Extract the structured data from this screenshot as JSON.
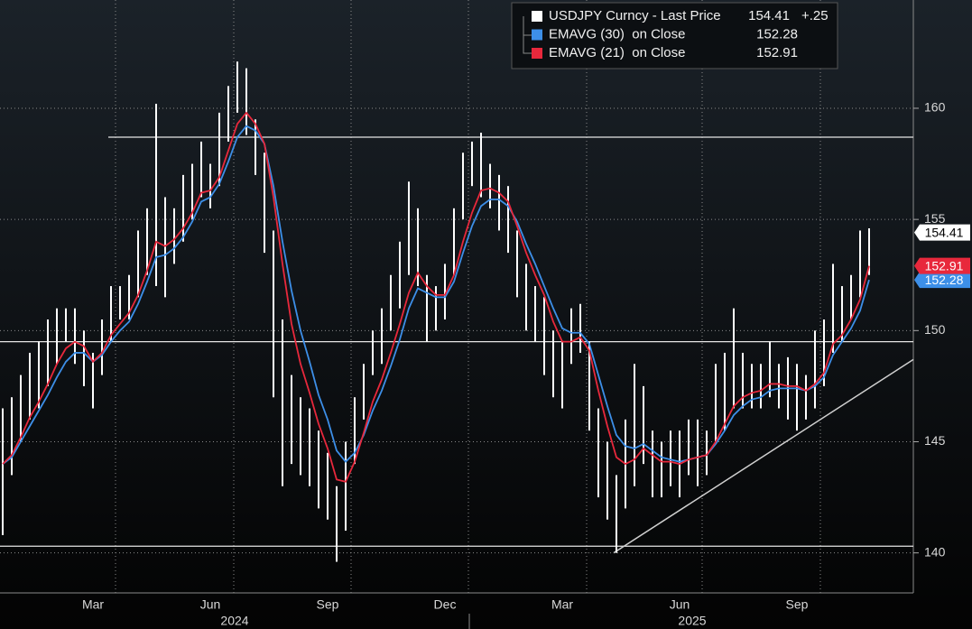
{
  "chart_data": {
    "type": "ohlc",
    "years": [
      "2024",
      "2025"
    ],
    "categories": [
      null,
      null,
      null,
      null,
      null,
      null,
      null,
      null,
      null,
      null,
      "Mar",
      null,
      null,
      null,
      null,
      null,
      null,
      null,
      null,
      null,
      null,
      null,
      null,
      "Jun",
      null,
      null,
      null,
      null,
      null,
      null,
      null,
      null,
      null,
      null,
      null,
      null,
      "Sep",
      null,
      null,
      null,
      null,
      null,
      null,
      null,
      null,
      null,
      null,
      null,
      null,
      "Dec",
      null,
      null,
      null,
      null,
      null,
      null,
      null,
      null,
      null,
      null,
      null,
      null,
      "Mar",
      null,
      null,
      null,
      null,
      null,
      null,
      null,
      null,
      null,
      null,
      null,
      null,
      "Jun",
      null,
      null,
      null,
      null,
      null,
      null,
      null,
      null,
      null,
      null,
      null,
      null,
      "Sep",
      null,
      null,
      null,
      null,
      null,
      null,
      null,
      null
    ],
    "series": [
      {
        "name": "USDJPY Curncy - Last Price",
        "color": "#ffffff",
        "last": 154.41,
        "change": {
          "value": 0.25,
          "label": "+.25"
        },
        "high": [
          146.5,
          147,
          148,
          149,
          149.5,
          150.5,
          151,
          151,
          151,
          150,
          149,
          150.5,
          152,
          152,
          152.5,
          154.5,
          155.5,
          160.2,
          156,
          155.5,
          157,
          157.5,
          158.5,
          157.5,
          159.8,
          161,
          162.1,
          161.8,
          159.5,
          158,
          154.5,
          150.5,
          148,
          147,
          146.5,
          145.5,
          144.5,
          143,
          145,
          147,
          148.5,
          150,
          151,
          152.5,
          154,
          156.7,
          155.5,
          152.5,
          152,
          153,
          155.5,
          158,
          158.5,
          158.9,
          157.5,
          157,
          156.5,
          154.5,
          153,
          152,
          151.5,
          150,
          149.5,
          151,
          151.2,
          149.5,
          146.5,
          145,
          143.5,
          146,
          148.5,
          147.5,
          145.5,
          145,
          145.5,
          145.5,
          146,
          146,
          145.5,
          148.5,
          149,
          151,
          149,
          148.5,
          148.5,
          149.5,
          148.5,
          148.8,
          148.5,
          148,
          150,
          150.5,
          153,
          152,
          152.5,
          154.5,
          154.6
        ],
        "low": [
          140.8,
          143.5,
          145,
          146,
          146.5,
          147.5,
          148.5,
          149.5,
          148.5,
          147.5,
          146.5,
          148,
          149.5,
          150.5,
          150.5,
          151.5,
          152.5,
          152,
          151.5,
          153,
          154,
          155,
          156,
          155.5,
          156.5,
          158.5,
          159.8,
          158.8,
          157,
          153.5,
          147,
          143,
          144,
          143.5,
          143,
          142,
          141.5,
          139.6,
          141,
          144,
          146,
          148,
          148.5,
          150,
          151,
          152.5,
          152,
          149.5,
          150,
          150.5,
          152.5,
          155,
          156.5,
          156,
          155.5,
          154.5,
          153.5,
          151.5,
          150,
          149.5,
          148,
          147,
          146.5,
          148.5,
          149,
          145.5,
          142.5,
          141.5,
          140,
          142,
          143,
          144,
          142.5,
          142.5,
          143,
          142.5,
          143.5,
          143,
          143.5,
          145,
          145.5,
          146.5,
          146.5,
          146.5,
          146.5,
          147,
          146.5,
          146,
          145.5,
          146,
          146.5,
          147.5,
          149,
          149.5,
          150.5,
          151.5,
          152.5
        ]
      },
      {
        "name": "EMAVG (30)  on Close",
        "color": "#3d8fe8",
        "last": 152.28,
        "values": [
          144,
          144.3,
          145,
          145.7,
          146.4,
          147.1,
          147.9,
          148.6,
          149,
          149,
          148.6,
          148.9,
          149.5,
          150,
          150.4,
          151.2,
          152.2,
          153.3,
          153.4,
          153.7,
          154.2,
          154.9,
          155.8,
          156,
          156.6,
          157.6,
          158.7,
          159.2,
          159,
          158.4,
          156.5,
          154,
          151.8,
          150,
          148.6,
          147.1,
          146,
          144.6,
          144.1,
          144.5,
          145.3,
          146.4,
          147.3,
          148.4,
          149.6,
          151,
          151.9,
          151.7,
          151.5,
          151.5,
          152.2,
          153.5,
          154.7,
          155.6,
          155.9,
          155.9,
          155.6,
          154.9,
          153.9,
          153,
          152,
          151,
          150.1,
          149.9,
          149.9,
          149.4,
          148,
          146.6,
          145.3,
          144.8,
          144.7,
          144.9,
          144.6,
          144.3,
          144.2,
          144.1,
          144.2,
          144.3,
          144.4,
          144.9,
          145.5,
          146.2,
          146.6,
          146.9,
          147,
          147.3,
          147.4,
          147.4,
          147.4,
          147.3,
          147.5,
          147.9,
          148.9,
          149.5,
          150.1,
          150.9,
          152.28
        ]
      },
      {
        "name": "EMAVG (21)  on Close",
        "color": "#e8283c",
        "last": 152.91,
        "values": [
          144,
          144.4,
          145.2,
          146.1,
          146.8,
          147.6,
          148.5,
          149.2,
          149.5,
          149.3,
          148.6,
          149,
          149.8,
          150.3,
          150.8,
          151.6,
          152.7,
          154,
          153.8,
          154.1,
          154.6,
          155.3,
          156.2,
          156.3,
          156.9,
          158.1,
          159.3,
          159.8,
          159.3,
          158.4,
          156,
          153,
          150.3,
          148.5,
          147.2,
          145.8,
          144.7,
          143.3,
          143.2,
          144.1,
          145.4,
          146.8,
          147.8,
          149,
          150.3,
          151.7,
          152.6,
          152,
          151.6,
          151.6,
          152.5,
          154,
          155.3,
          156.3,
          156.4,
          156.2,
          155.8,
          154.7,
          153.5,
          152.5,
          151.6,
          150.4,
          149.5,
          149.5,
          149.7,
          149.1,
          147.3,
          145.7,
          144.3,
          144,
          144.2,
          144.7,
          144.4,
          144.1,
          144.1,
          144,
          144.2,
          144.3,
          144.4,
          145,
          145.8,
          146.6,
          147,
          147.2,
          147.3,
          147.6,
          147.6,
          147.5,
          147.5,
          147.3,
          147.6,
          148.1,
          149.4,
          149.8,
          150.5,
          151.4,
          152.91
        ]
      }
    ],
    "levels": [
      158.7,
      149.5,
      140.3
    ],
    "trendline": [
      140.0,
      148.7
    ],
    "ylim": [
      138.2,
      164.87
    ],
    "yticks": [
      140,
      145,
      150,
      155,
      160
    ],
    "grid": true
  }
}
